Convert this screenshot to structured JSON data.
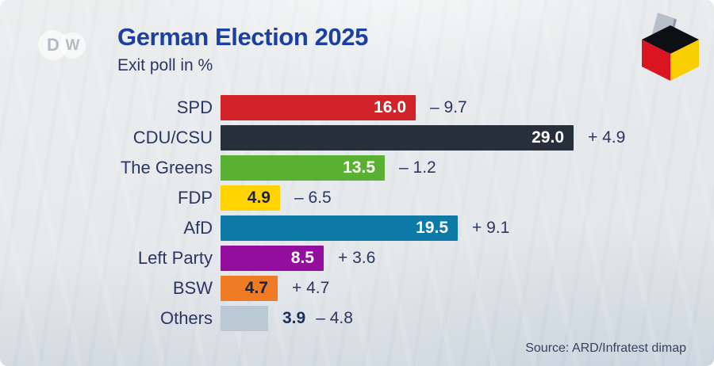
{
  "brand": {
    "name": "DW",
    "logo_letter_d": "D",
    "logo_letter_w": "W"
  },
  "header": {
    "title": "German Election 2025",
    "subtitle": "Exit poll in %"
  },
  "footer": {
    "source": "Source: ARD/Infratest dimap"
  },
  "icons": {
    "dw_logo": "dw-logo",
    "ballot_box": "german-flag-ballot-box-icon"
  },
  "colors": {
    "title_blue": "#1c3fa3",
    "text_navy": "#2b3663",
    "source_text": "#36425a",
    "background": "#e3e7ea",
    "flag_black": "#0c0f14",
    "flag_red": "#da1420",
    "flag_gold": "#f8ce00",
    "ballot_paper": "#b7c0ca"
  },
  "chart_data": {
    "type": "bar",
    "orientation": "horizontal",
    "title": "German Election 2025",
    "subtitle": "Exit poll in %",
    "unit": "%",
    "xlim": [
      0,
      29
    ],
    "grid": false,
    "legend": false,
    "categories": [
      "SPD",
      "CDU/CSU",
      "The Greens",
      "FDP",
      "AfD",
      "Left Party",
      "BSW",
      "Others"
    ],
    "values": [
      16.0,
      29.0,
      13.5,
      4.9,
      19.5,
      8.5,
      4.7,
      3.9
    ],
    "value_labels": [
      "16.0",
      "29.0",
      "13.5",
      "4.9",
      "19.5",
      "8.5",
      "4.7",
      "3.9"
    ],
    "change_labels": [
      "– 9.7",
      "+ 4.9",
      "– 1.2",
      "– 6.5",
      "+ 9.1",
      "+ 3.6",
      "+ 4.7",
      "– 4.8"
    ],
    "bar_colors": [
      "#d2232a",
      "#272f3b",
      "#5ab032",
      "#ffd400",
      "#0d79a7",
      "#930d9e",
      "#ef7b25",
      "#bac9d4"
    ],
    "value_label_colors": [
      "#ffffff",
      "#ffffff",
      "#ffffff",
      "#1a2340",
      "#ffffff",
      "#ffffff",
      "#1a2340",
      "#1c2d5e"
    ],
    "value_label_positions": [
      "inside",
      "inside",
      "inside",
      "inside",
      "inside",
      "inside",
      "inside",
      "outside"
    ],
    "source": "Source: ARD/Infratest dimap"
  }
}
